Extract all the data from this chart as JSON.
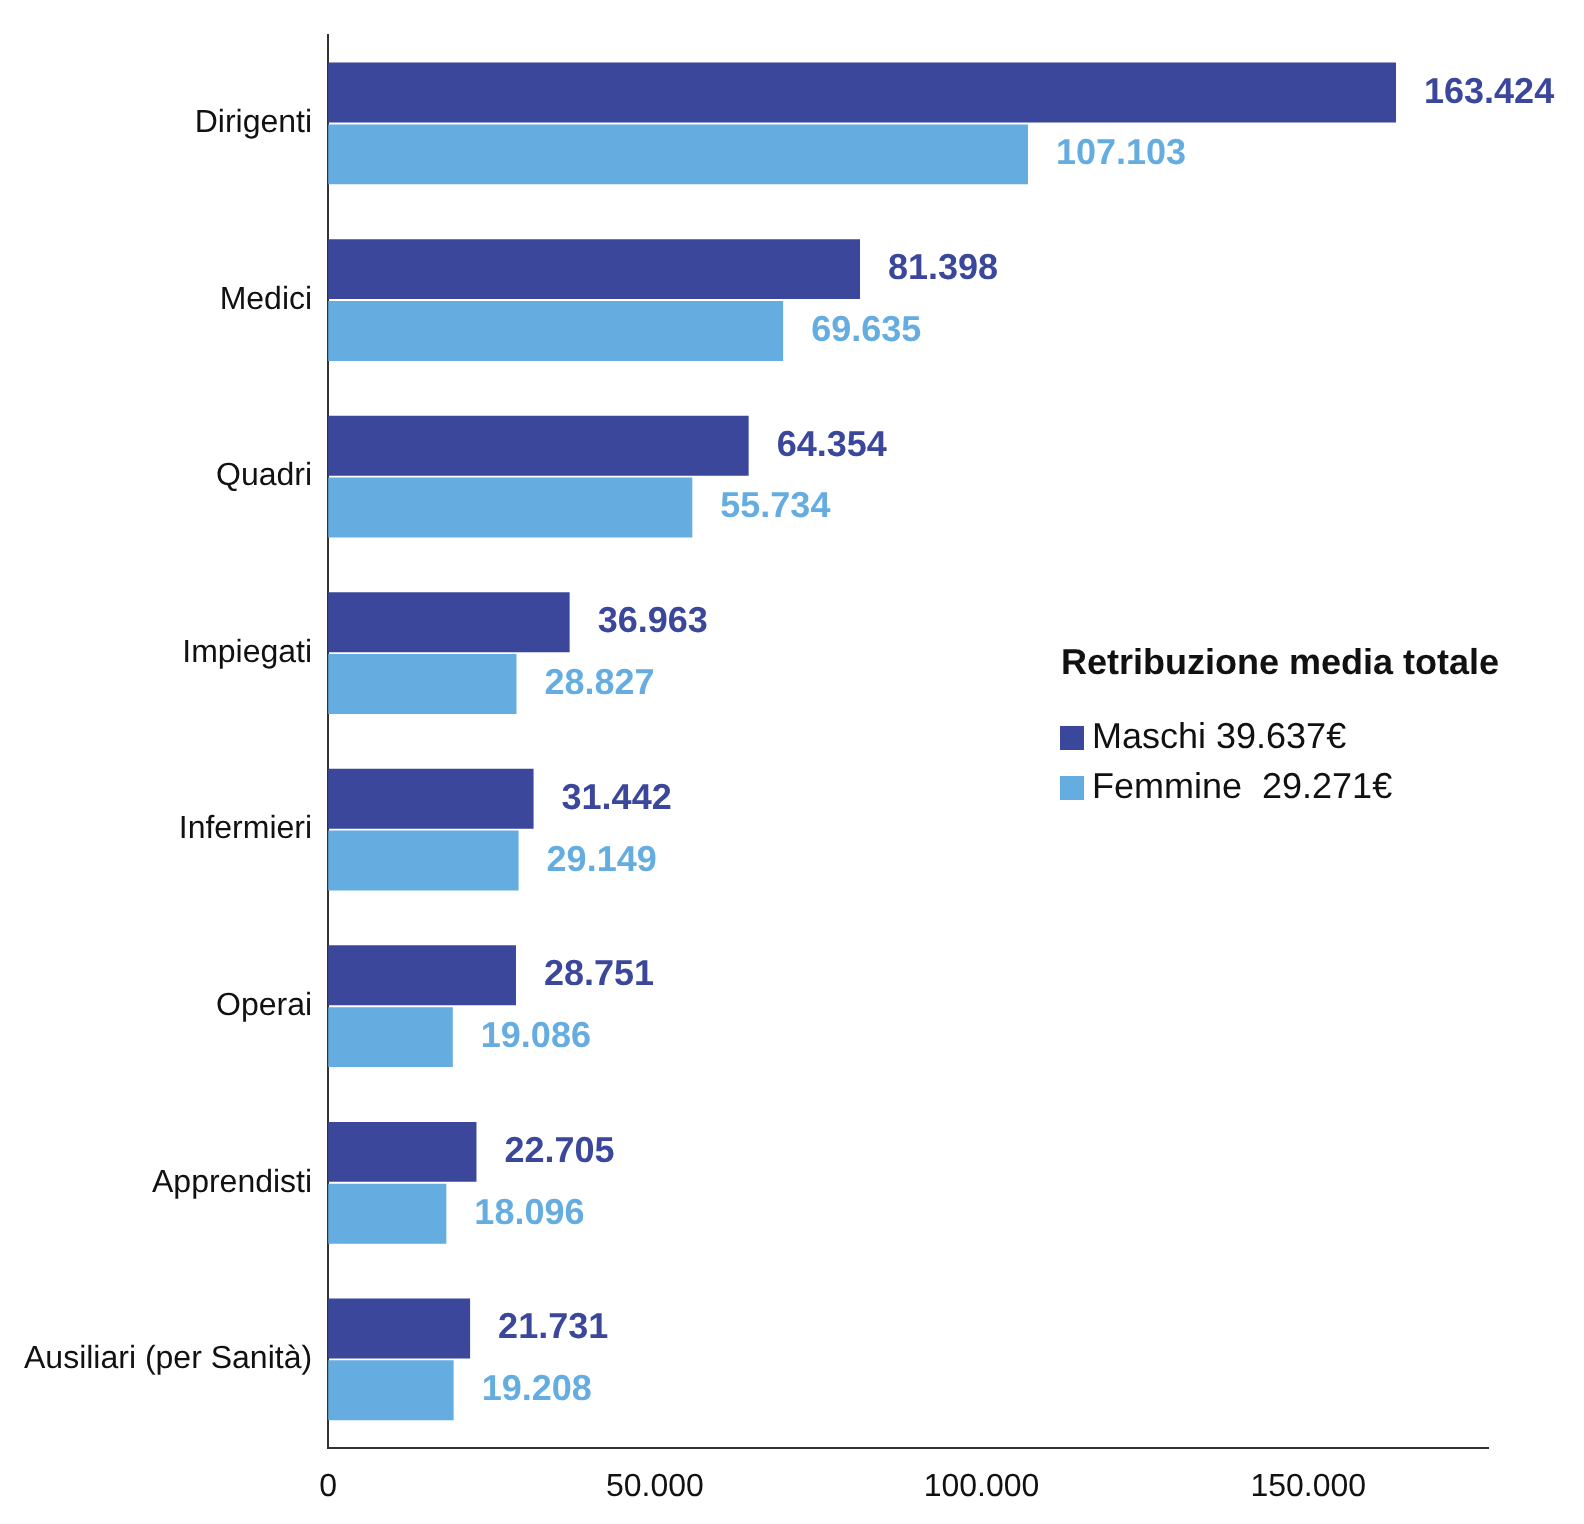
{
  "chart_data": {
    "type": "bar",
    "orientation": "horizontal",
    "legend_title": "Retribuzione media totale",
    "legend": "right",
    "categories": [
      "Dirigenti",
      "Medici",
      "Quadri",
      "Impiegati",
      "Infermieri",
      "Operai",
      "Apprendisti",
      "Ausiliari (per Sanità)"
    ],
    "series": [
      {
        "name": "Maschi 39.637€",
        "color": "#3a479b",
        "values": [
          163424,
          81398,
          64354,
          36963,
          31442,
          28751,
          22705,
          21731
        ],
        "value_labels": [
          "163.424",
          "81.398",
          "64.354",
          "36.963",
          "31.442",
          "28.751",
          "22.705",
          "21.731"
        ]
      },
      {
        "name": "Femmine  29.271€",
        "color": "#65ade0",
        "values": [
          107103,
          69635,
          55734,
          28827,
          29149,
          19086,
          18096,
          19208
        ],
        "value_labels": [
          "107.103",
          "69.635",
          "55.734",
          "28.827",
          "29.149",
          "19.086",
          "18.096",
          "19.208"
        ]
      }
    ],
    "xlim": [
      0,
      177500
    ],
    "xticks": [
      0,
      {
        "value": 50000,
        "label": "50.000"
      },
      {
        "value": 100000,
        "label": "100.000"
      },
      {
        "value": 150000,
        "label": "150.000"
      }
    ],
    "grid": false
  }
}
